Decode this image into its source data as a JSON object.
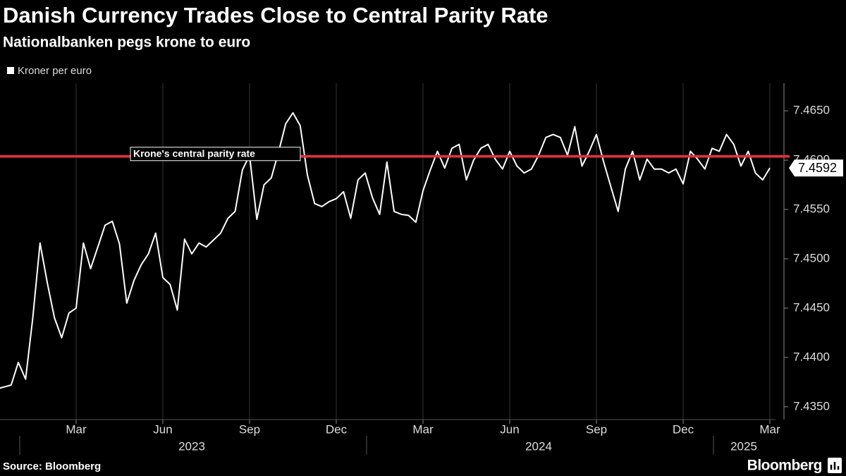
{
  "chart_data": {
    "type": "line",
    "title": "Danish Currency Trades Close to Central Parity Rate",
    "subtitle": "Nationalbanken pegs krone to euro",
    "source": "Source: Bloomberg",
    "brand": "Bloomberg",
    "x": [
      "2022-12",
      "2022-12",
      "2022-12",
      "2022-12",
      "2023-01",
      "2023-01",
      "2023-01",
      "2023-01",
      "2023-02",
      "2023-02",
      "2023-02",
      "2023-02",
      "2023-03",
      "2023-03",
      "2023-03",
      "2023-03",
      "2023-04",
      "2023-04",
      "2023-04",
      "2023-04",
      "2023-05",
      "2023-05",
      "2023-05",
      "2023-05",
      "2023-06",
      "2023-06",
      "2023-06",
      "2023-06",
      "2023-07",
      "2023-07",
      "2023-07",
      "2023-07",
      "2023-08",
      "2023-08",
      "2023-08",
      "2023-08",
      "2023-09",
      "2023-09",
      "2023-09",
      "2023-09",
      "2023-10",
      "2023-10",
      "2023-10",
      "2023-10",
      "2023-11",
      "2023-11",
      "2023-11",
      "2023-11",
      "2023-12",
      "2023-12",
      "2023-12",
      "2023-12",
      "2024-01",
      "2024-01",
      "2024-01",
      "2024-01",
      "2024-02",
      "2024-02",
      "2024-02",
      "2024-02",
      "2024-03",
      "2024-03",
      "2024-03",
      "2024-03",
      "2024-04",
      "2024-04",
      "2024-04",
      "2024-04",
      "2024-05",
      "2024-05",
      "2024-05",
      "2024-05",
      "2024-06",
      "2024-06",
      "2024-06",
      "2024-06",
      "2024-07",
      "2024-07",
      "2024-07",
      "2024-07",
      "2024-08",
      "2024-08",
      "2024-08",
      "2024-08",
      "2024-09",
      "2024-09",
      "2024-09",
      "2024-09",
      "2024-10",
      "2024-10",
      "2024-10",
      "2024-10",
      "2024-11",
      "2024-11",
      "2024-11",
      "2024-11",
      "2024-12",
      "2024-12",
      "2024-12",
      "2024-12",
      "2025-01",
      "2025-01",
      "2025-01",
      "2025-01",
      "2025-02",
      "2025-02",
      "2025-02",
      "2025-02",
      "2025-03"
    ],
    "series": [
      {
        "name": "Kroner per euro",
        "color": "#ffffff",
        "values": [
          7.4365,
          7.4368,
          7.437,
          7.4372,
          7.4395,
          7.4378,
          7.444,
          7.4516,
          7.4476,
          7.444,
          7.442,
          7.4445,
          7.445,
          7.4516,
          7.449,
          7.4512,
          7.4534,
          7.4538,
          7.4515,
          7.4455,
          7.4478,
          7.4494,
          7.4505,
          7.4526,
          7.4481,
          7.4474,
          7.4448,
          7.452,
          7.4505,
          7.4516,
          7.4512,
          7.4519,
          7.4526,
          7.4541,
          7.4548,
          7.459,
          7.4605,
          7.454,
          7.4575,
          7.4582,
          7.4608,
          7.4637,
          7.4648,
          7.4635,
          7.4585,
          7.4556,
          7.4553,
          7.4558,
          7.4561,
          7.4568,
          7.4541,
          7.458,
          7.4587,
          7.4562,
          7.4545,
          7.4598,
          7.4548,
          7.4545,
          7.4544,
          7.4537,
          7.4569,
          7.459,
          7.4609,
          7.4592,
          7.4612,
          7.4616,
          7.458,
          7.46,
          7.4612,
          7.4616,
          7.4601,
          7.4591,
          7.4609,
          7.4594,
          7.4587,
          7.4591,
          7.4605,
          7.4623,
          7.4626,
          7.4623,
          7.4605,
          7.4634,
          7.4594,
          7.4609,
          7.4626,
          7.4598,
          7.4573,
          7.4548,
          7.4591,
          7.4609,
          7.458,
          7.4601,
          7.4591,
          7.4591,
          7.4587,
          7.4591,
          7.4576,
          7.4609,
          7.4601,
          7.4591,
          7.4612,
          7.4609,
          7.4626,
          7.4616,
          7.4594,
          7.4609,
          7.4587,
          7.458,
          7.4592
        ]
      }
    ],
    "xlim": [
      "2022-12",
      "2025-03"
    ],
    "xticks": [
      {
        "value": "2023-03",
        "label": "Mar"
      },
      {
        "value": "2023-06",
        "label": "Jun"
      },
      {
        "value": "2023-09",
        "label": "Sep"
      },
      {
        "value": "2023-12",
        "label": "Dec"
      },
      {
        "value": "2024-03",
        "label": "Mar"
      },
      {
        "value": "2024-06",
        "label": "Jun"
      },
      {
        "value": "2024-09",
        "label": "Sep"
      },
      {
        "value": "2024-12",
        "label": "Dec"
      },
      {
        "value": "2025-03",
        "label": "Mar"
      }
    ],
    "years": [
      "2023",
      "2024",
      "2025"
    ],
    "ylim": [
      7.4337,
      7.4678
    ],
    "yticks": [
      {
        "value": 7.435,
        "label": "7.4350"
      },
      {
        "value": 7.44,
        "label": "7.4400"
      },
      {
        "value": 7.445,
        "label": "7.4450"
      },
      {
        "value": 7.45,
        "label": "7.4500"
      },
      {
        "value": 7.455,
        "label": "7.4550"
      },
      {
        "value": 7.46,
        "label": "7.4600"
      },
      {
        "value": 7.465,
        "label": "7.4650"
      }
    ],
    "grid": true,
    "reference_line": {
      "value": 7.46038,
      "label": "Krone's central parity rate",
      "color": "#e8303c"
    }
  }
}
